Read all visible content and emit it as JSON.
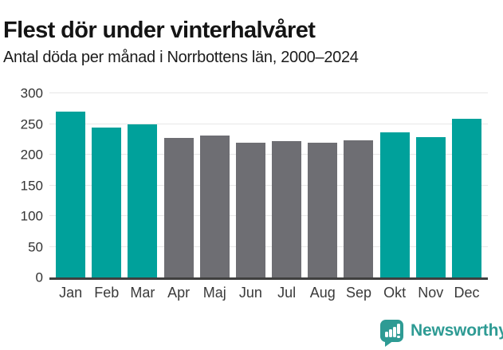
{
  "chart_data": {
    "type": "bar",
    "title": "Flest dör under vinterhalvåret",
    "subtitle": "Antal döda per månad i Norrbottens län, 2000–2024",
    "categories": [
      "Jan",
      "Feb",
      "Mar",
      "Apr",
      "Maj",
      "Jun",
      "Jul",
      "Aug",
      "Sep",
      "Okt",
      "Nov",
      "Dec"
    ],
    "values": [
      270,
      244,
      250,
      227,
      231,
      219,
      222,
      219,
      224,
      236,
      228,
      258
    ],
    "highlighted": [
      true,
      true,
      true,
      false,
      false,
      false,
      false,
      false,
      false,
      true,
      true,
      true
    ],
    "xlabel": "",
    "ylabel": "",
    "ylim": [
      0,
      300
    ],
    "yticks": [
      0,
      50,
      100,
      150,
      200,
      250,
      300
    ],
    "grid": true,
    "legend_position": "none",
    "colors": {
      "highlight": "#00a19b",
      "muted": "#6e6e73",
      "gridline": "#e7e7e7",
      "axis": "#3f3f3f"
    }
  },
  "footer": {
    "brand": "Newsworthy",
    "brand_color": "#2e9b94"
  }
}
